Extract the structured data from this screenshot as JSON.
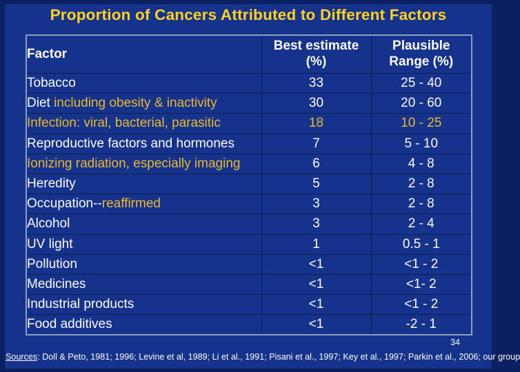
{
  "slide": {
    "title": "Proportion of Cancers Attributed to Different Factors",
    "page_number": "34",
    "sources_label": "Sources",
    "sources_rest": ": Doll & Peto, 1981; 1996; Levine et al, 1989; Li et al., 1991; Pisani et al., 1997; Key et al., 1997; Parkin et al., 2006; our group"
  },
  "colors": {
    "background": "#15328C",
    "frame": "#0B2060",
    "title_yellow": "#FFD21E",
    "accent_yellow": "#EBB92B",
    "text_white": "#FFFFFF",
    "grid_line": "#0A1C48",
    "table_outline": "#8EA0C0"
  },
  "table": {
    "headers": {
      "factor": "Factor",
      "best_line1": "Best estimate",
      "best_line2": "(%)",
      "range_line1": "Plausible",
      "range_line2": "Range (%)"
    },
    "rows": [
      {
        "factor_white": "Tobacco",
        "factor_yellow": "",
        "best": "33",
        "range": "25 - 40",
        "accent_values": false
      },
      {
        "factor_white": "Diet ",
        "factor_yellow": "including obesity & inactivity",
        "best": "30",
        "range": "20 - 60",
        "accent_values": false
      },
      {
        "factor_white": "",
        "factor_yellow": "Infection: viral, bacterial, parasitic",
        "best": "18",
        "range": "10 - 25",
        "accent_values": true
      },
      {
        "factor_white": "Reproductive factors and hormones",
        "factor_yellow": "",
        "best": "7",
        "range": "5 - 10",
        "accent_values": false
      },
      {
        "factor_white": "",
        "factor_yellow": "Ionizing radiation, especially imaging",
        "best": "6",
        "range": "4 - 8",
        "accent_values": false
      },
      {
        "factor_white": "Heredity",
        "factor_yellow": "",
        "best": "5",
        "range": "2 - 8",
        "accent_values": false
      },
      {
        "factor_white": "Occupation--",
        "factor_yellow": "reaffirmed",
        "best": "3",
        "range": "2 - 8",
        "accent_values": false
      },
      {
        "factor_white": "Alcohol",
        "factor_yellow": "",
        "best": "3",
        "range": "2 - 4",
        "accent_values": false
      },
      {
        "factor_white": "UV light",
        "factor_yellow": "",
        "best": "1",
        "range": "0.5 - 1",
        "accent_values": false
      },
      {
        "factor_white": "Pollution",
        "factor_yellow": "",
        "best": "<1",
        "range": "<1 - 2",
        "accent_values": false
      },
      {
        "factor_white": "Medicines",
        "factor_yellow": "",
        "best": "<1",
        "range": "<1- 2",
        "accent_values": false
      },
      {
        "factor_white": "Industrial products",
        "factor_yellow": "",
        "best": "<1",
        "range": "<1 - 2",
        "accent_values": false
      },
      {
        "factor_white": "Food additives",
        "factor_yellow": "",
        "best": "<1",
        "range": "-2 - 1",
        "accent_values": false
      }
    ]
  }
}
